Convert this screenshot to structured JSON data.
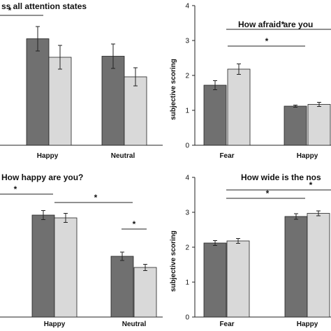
{
  "colors": {
    "dark": "#707070",
    "light": "#d9d9d9",
    "stroke": "#222222"
  },
  "chart_data": [
    {
      "type": "bar",
      "title": "ss  all attention  states",
      "ylabel": "",
      "categories": [
        "Happy",
        "Neutral"
      ],
      "ylim": [
        0,
        4
      ],
      "series": [
        {
          "values": [
            3.05,
            2.55
          ],
          "errors": [
            0.35,
            0.35
          ]
        },
        {
          "values": [
            2.52,
            1.96
          ],
          "errors": [
            0.34,
            0.26
          ]
        }
      ],
      "significance": [
        {
          "label": "*"
        }
      ]
    },
    {
      "type": "bar",
      "title": "How afraid are you",
      "ylabel": "subjective scoring",
      "categories": [
        "Fear",
        "Happy"
      ],
      "yticks": [
        "0",
        "1",
        "2",
        "3",
        "4"
      ],
      "ylim": [
        0,
        4
      ],
      "series": [
        {
          "values": [
            1.72,
            1.12
          ],
          "errors": [
            0.13,
            0.03
          ]
        },
        {
          "values": [
            2.18,
            1.17
          ],
          "errors": [
            0.15,
            0.06
          ]
        }
      ],
      "significance": [
        {
          "label": "*"
        },
        {
          "label": "*"
        }
      ]
    },
    {
      "type": "bar",
      "title": "How happy are you?",
      "ylabel": "",
      "categories": [
        "Happy",
        "Neutral"
      ],
      "ylim": [
        0,
        4
      ],
      "series": [
        {
          "values": [
            2.92,
            1.74
          ],
          "errors": [
            0.13,
            0.12
          ]
        },
        {
          "values": [
            2.84,
            1.42
          ],
          "errors": [
            0.13,
            0.09
          ]
        }
      ],
      "significance": [
        {
          "label": "*"
        },
        {
          "label": "*"
        },
        {
          "label": "*"
        }
      ]
    },
    {
      "type": "bar",
      "title": "How wide is the nos",
      "ylabel": "subjective scoring",
      "categories": [
        "Fear",
        "Happy"
      ],
      "yticks": [
        "0",
        "1",
        "2",
        "3",
        "4"
      ],
      "ylim": [
        0,
        4
      ],
      "series": [
        {
          "values": [
            2.12,
            2.88
          ],
          "errors": [
            0.07,
            0.08
          ]
        },
        {
          "values": [
            2.18,
            2.97
          ],
          "errors": [
            0.07,
            0.07
          ]
        }
      ],
      "significance": [
        {
          "label": "*"
        },
        {
          "label": "*"
        }
      ]
    }
  ]
}
